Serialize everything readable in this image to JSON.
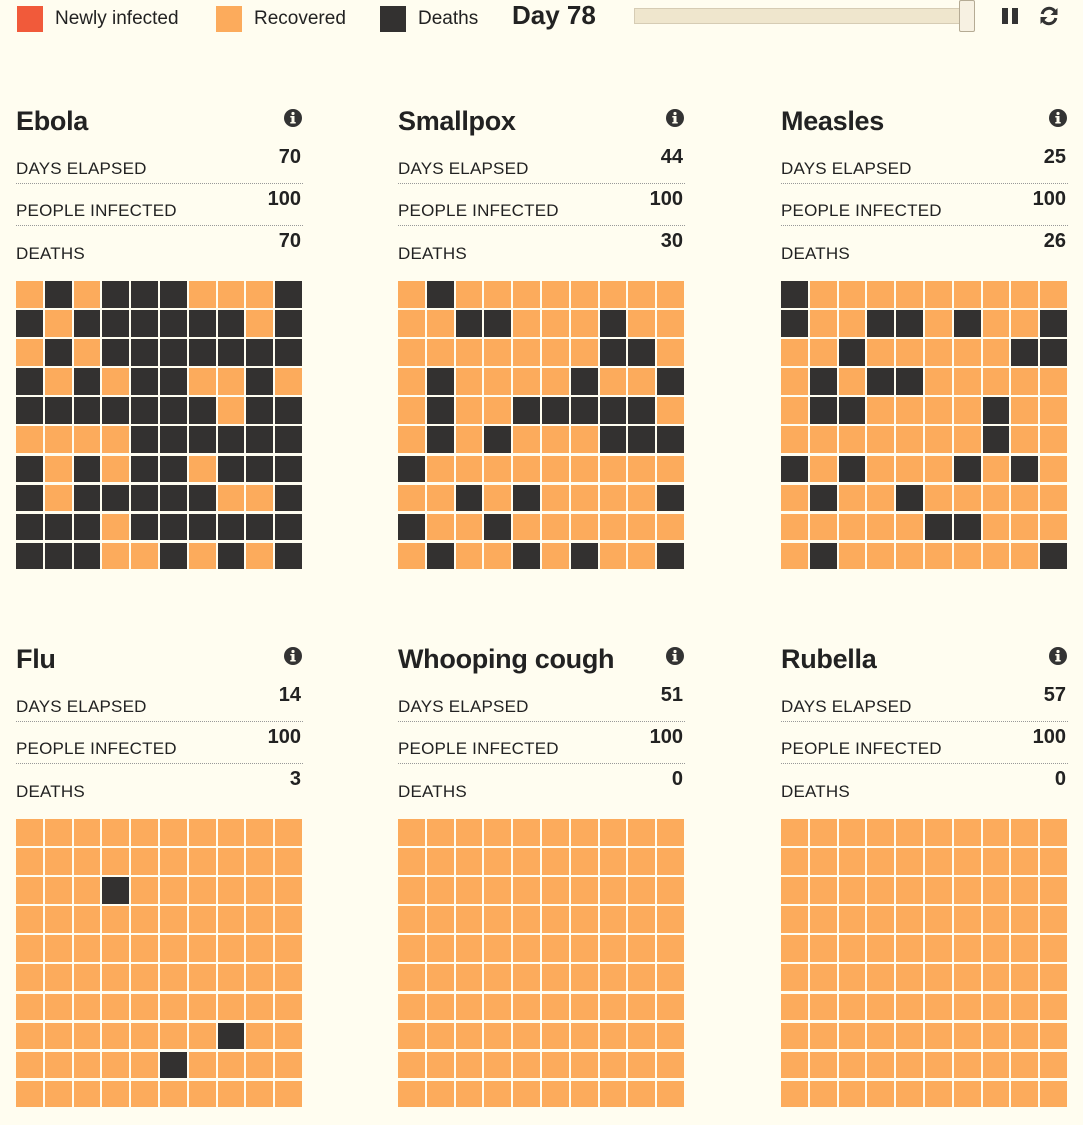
{
  "legend": [
    {
      "label": "Newly infected",
      "color": "#f15a3a"
    },
    {
      "label": "Recovered",
      "color": "#fcab5c"
    },
    {
      "label": "Deaths",
      "color": "#333130"
    }
  ],
  "day_label": "Day 78",
  "slider": {
    "value": 78,
    "max": 78
  },
  "controls": {
    "pause": "pause-icon",
    "restart": "refresh-icon"
  },
  "stat_labels": {
    "days": "DAYS ELAPSED",
    "infected": "PEOPLE INFECTED",
    "deaths": "DEATHS"
  },
  "colors": {
    "recovered": "#fcab5c",
    "death": "#333130",
    "background": "#fffdf0"
  },
  "diseases": [
    {
      "name": "Ebola",
      "days_elapsed": "70",
      "people_infected": "100",
      "deaths": "70",
      "grid": [
        "RDRDDDRRRD",
        "DRDDDDDDRD",
        "RDRDDDDDDD",
        "DRDRDDRRDR",
        "DDDDDDDRDD",
        "RRRRDDDDDD",
        "DRDRDDRDDD",
        "DRDDDDDRRD",
        "DDDRDDDDDD",
        "DDDRRDRDRD"
      ]
    },
    {
      "name": "Smallpox",
      "days_elapsed": "44",
      "people_infected": "100",
      "deaths": "30",
      "grid": [
        "RDRRRRRRRR",
        "RRDDRRRDRR",
        "RRRRRRRDDR",
        "RDRRRRDRRD",
        "RDRRDDDDDR",
        "RDRDRRRDDD",
        "DRRRRRRRRR",
        "RRDRDRRRRD",
        "DRRDRRRRRR",
        "RDRRDRDRRD"
      ]
    },
    {
      "name": "Measles",
      "days_elapsed": "25",
      "people_infected": "100",
      "deaths": "26",
      "grid": [
        "DRRRRRRRRR",
        "DRRDDRDRRD",
        "RRDRRRRRDD",
        "RDRDDRRRRR",
        "RDDRRRRDRR",
        "RRRRRRRDRR",
        "DRDRRRDRDR",
        "RDRRDRRRRR",
        "RRRRRDDRRR",
        "RDRRRRRRRD"
      ]
    },
    {
      "name": "Flu",
      "days_elapsed": "14",
      "people_infected": "100",
      "deaths": "3",
      "grid": [
        "RRRRRRRRRR",
        "RRRRRRRRRR",
        "RRRDRRRRRR",
        "RRRRRRRRRR",
        "RRRRRRRRRR",
        "RRRRRRRRRR",
        "RRRRRRRRRR",
        "RRRRRRRDRR",
        "RRRRRDRRRR",
        "RRRRRRRRRR"
      ]
    },
    {
      "name": "Whooping cough",
      "days_elapsed": "51",
      "people_infected": "100",
      "deaths": "0",
      "grid": [
        "RRRRRRRRRR",
        "RRRRRRRRRR",
        "RRRRRRRRRR",
        "RRRRRRRRRR",
        "RRRRRRRRRR",
        "RRRRRRRRRR",
        "RRRRRRRRRR",
        "RRRRRRRRRR",
        "RRRRRRRRRR",
        "RRRRRRRRRR"
      ]
    },
    {
      "name": "Rubella",
      "days_elapsed": "57",
      "people_infected": "100",
      "deaths": "0",
      "grid": [
        "RRRRRRRRRR",
        "RRRRRRRRRR",
        "RRRRRRRRRR",
        "RRRRRRRRRR",
        "RRRRRRRRRR",
        "RRRRRRRRRR",
        "RRRRRRRRRR",
        "RRRRRRRRRR",
        "RRRRRRRRRR",
        "RRRRRRRRRR"
      ]
    }
  ]
}
